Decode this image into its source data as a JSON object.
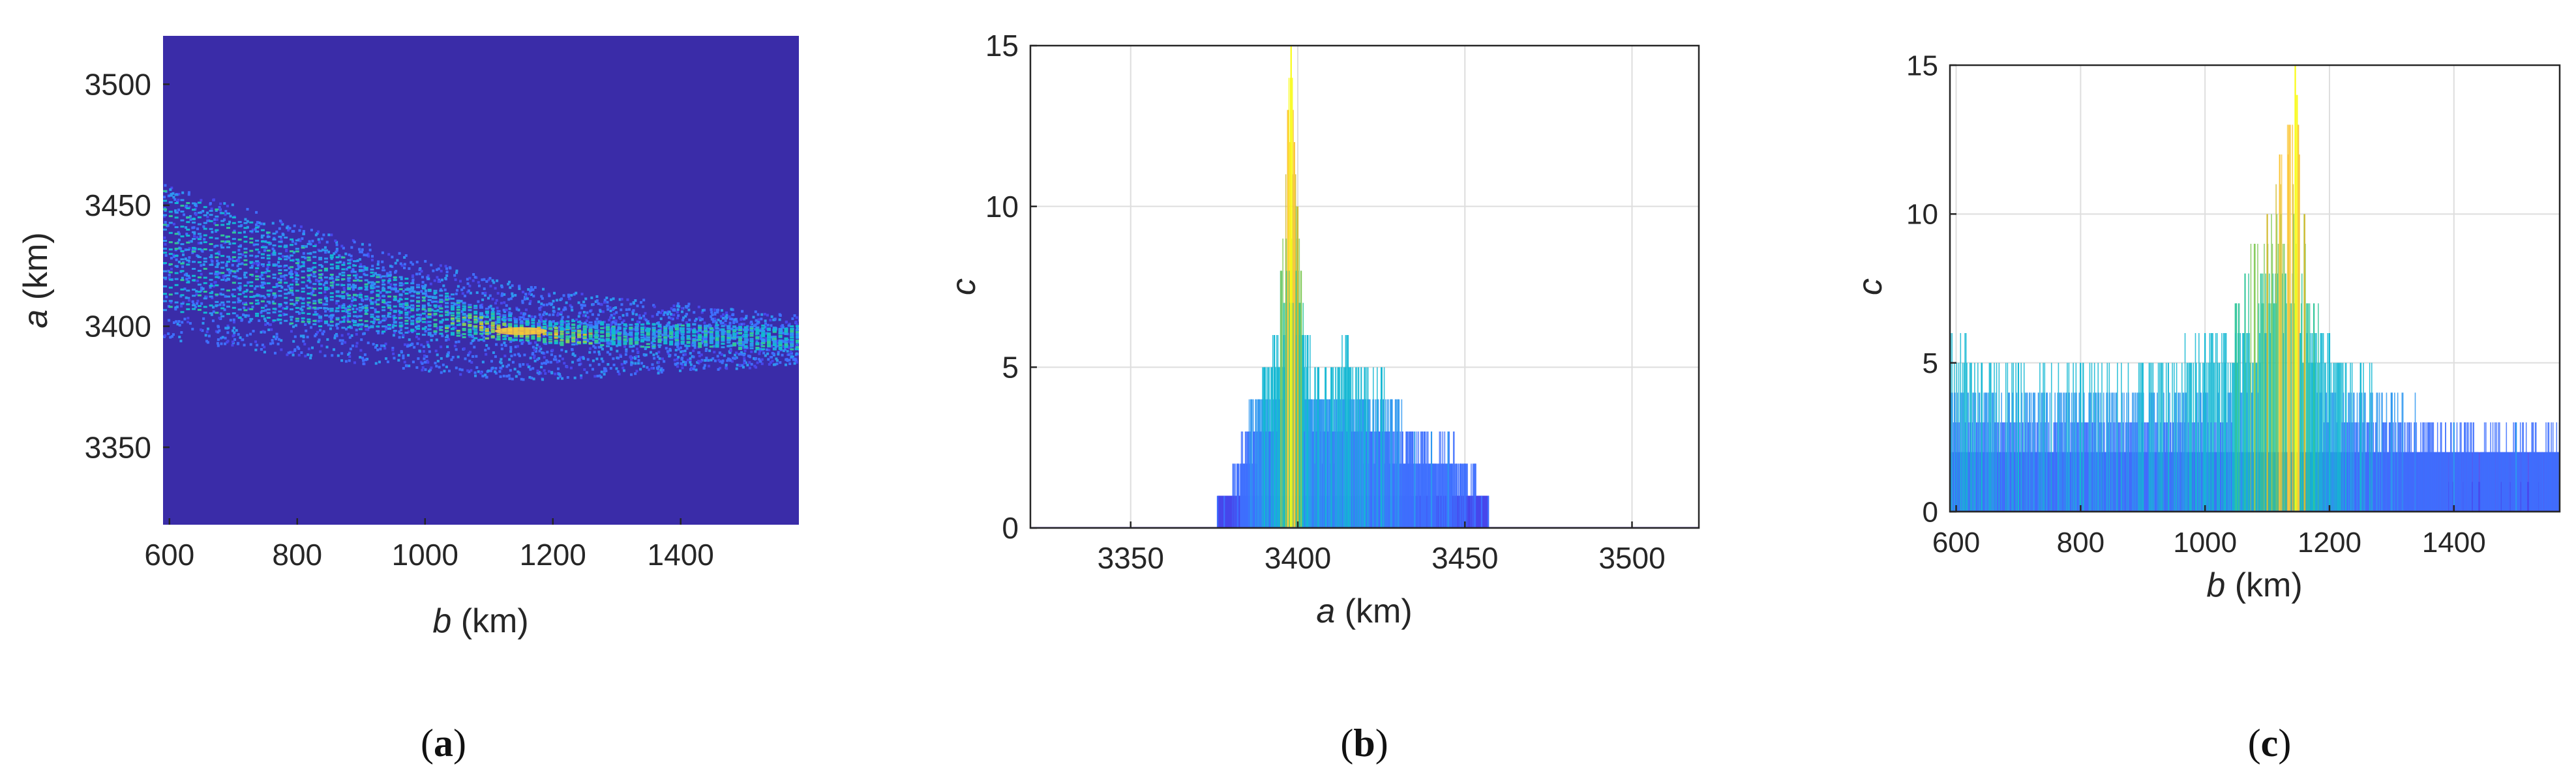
{
  "colors": {
    "background": "#3a2ca8",
    "axis": "#262626",
    "grid": "#dedede",
    "colormap": [
      "#3e26a8",
      "#4746eb",
      "#3e6ffe",
      "#2d97f0",
      "#13b8d3",
      "#30c69a",
      "#84cb5c",
      "#d2bb32",
      "#fcc73c",
      "#f9fb15"
    ]
  },
  "chart_data": [
    {
      "type": "heatmap",
      "panel_label": "a",
      "xlabel": {
        "var": "b",
        "unit": " (km)"
      },
      "ylabel": {
        "var": "a",
        "unit": " (km)"
      },
      "xlim": [
        590,
        1585
      ],
      "ylim": [
        3318,
        3520
      ],
      "xticks": [
        600,
        800,
        1000,
        1200,
        1400
      ],
      "yticks": [
        3350,
        3400,
        3450,
        3500
      ],
      "grid": false,
      "ridge": {
        "curve_x": [
          590,
          700,
          800,
          900,
          1000,
          1100,
          1150,
          1200,
          1300,
          1400,
          1500,
          1585
        ],
        "curve_y": [
          3427,
          3421,
          3415,
          3410,
          3405,
          3400,
          3398,
          3397,
          3396,
          3396,
          3395,
          3395
        ],
        "peak": {
          "x": 1150,
          "y": 3398
        },
        "base_band_y": [
          3388,
          3408
        ]
      }
    },
    {
      "type": "area",
      "panel_label": "b",
      "xlabel": {
        "var": "a",
        "unit": " (km)"
      },
      "ylabel": {
        "var": "c",
        "unit": ""
      },
      "xlim": [
        3320,
        3520
      ],
      "ylim": [
        0,
        15
      ],
      "xticks": [
        3350,
        3400,
        3450,
        3500
      ],
      "yticks": [
        0,
        5,
        10,
        15
      ],
      "grid": true,
      "profile": {
        "x": [
          3376,
          3378,
          3382,
          3386,
          3390,
          3393,
          3395,
          3397,
          3398,
          3399,
          3400,
          3401,
          3403,
          3406,
          3410,
          3415,
          3420,
          3425,
          3430,
          3435,
          3440,
          3445,
          3450,
          3453,
          3455,
          3457
        ],
        "y": [
          1,
          1,
          2,
          4,
          5,
          6,
          8,
          13,
          15,
          12,
          10,
          8,
          6,
          5,
          5,
          6,
          5,
          5,
          4,
          3,
          3,
          3,
          2,
          2,
          1,
          1
        ]
      }
    },
    {
      "type": "area",
      "panel_label": "c",
      "xlabel": {
        "var": "b",
        "unit": " (km)"
      },
      "ylabel": {
        "var": "c",
        "unit": ""
      },
      "xlim": [
        590,
        1570
      ],
      "ylim": [
        0,
        15
      ],
      "xticks": [
        600,
        800,
        1000,
        1200,
        1400
      ],
      "yticks": [
        0,
        5,
        10,
        15
      ],
      "grid": true,
      "profile": {
        "x": [
          590,
          700,
          800,
          900,
          1000,
          1050,
          1080,
          1100,
          1120,
          1135,
          1145,
          1150,
          1160,
          1175,
          1200,
          1250,
          1300,
          1400,
          1500,
          1570
        ],
        "y": [
          6,
          5,
          5,
          5,
          6,
          7,
          9,
          10,
          12,
          13,
          15,
          13,
          10,
          7,
          6,
          5,
          4,
          3,
          3,
          3
        ]
      }
    }
  ]
}
